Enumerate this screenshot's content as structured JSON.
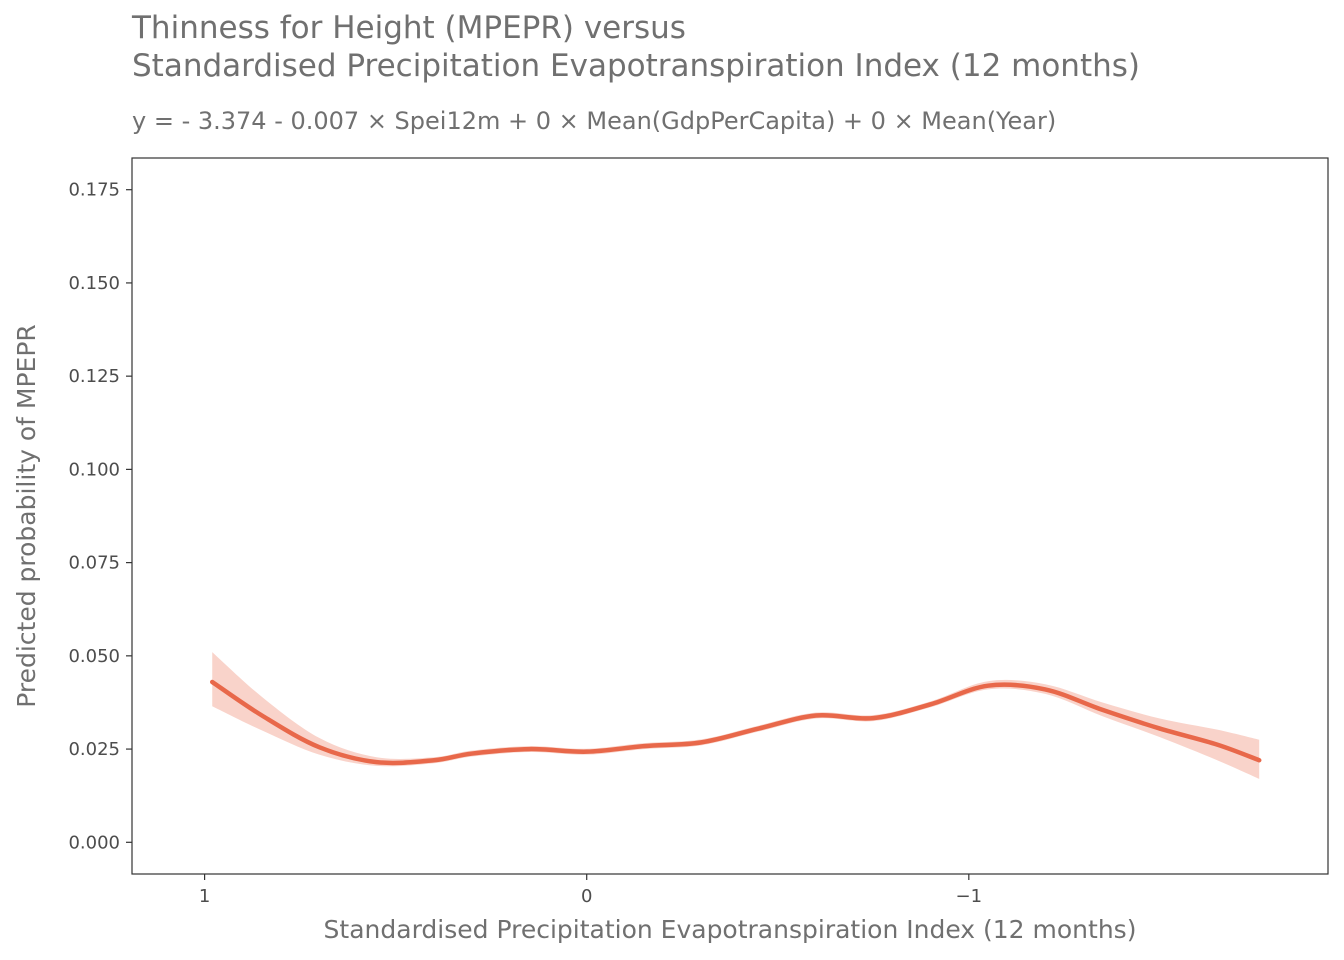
{
  "chart_data": {
    "type": "line",
    "title_line1": "Thinness for Height (MPEPR) versus",
    "title_line2": "Standardised Precipitation Evapotranspiration Index (12 months)",
    "subtitle": "y =  - 3.374 - 0.007 × Spei12m + 0 × Mean(GdpPerCapita) + 0 × Mean(Year)",
    "xlabel": "Standardised Precipitation Evapotranspiration Index (12 months)",
    "ylabel": "Predicted probability of MPEPR",
    "x_reversed": true,
    "xlim": [
      1.19,
      -1.94
    ],
    "ylim": [
      -0.0085,
      0.1835
    ],
    "x_ticks": [
      {
        "value": 1,
        "label": "1"
      },
      {
        "value": 0,
        "label": "0"
      },
      {
        "value": -1,
        "label": "−1"
      }
    ],
    "y_ticks": [
      {
        "value": 0.0,
        "label": "0.000"
      },
      {
        "value": 0.025,
        "label": "0.025"
      },
      {
        "value": 0.05,
        "label": "0.050"
      },
      {
        "value": 0.075,
        "label": "0.075"
      },
      {
        "value": 0.1,
        "label": "0.100"
      },
      {
        "value": 0.125,
        "label": "0.125"
      },
      {
        "value": 0.15,
        "label": "0.150"
      },
      {
        "value": 0.175,
        "label": "0.175"
      }
    ],
    "grid": false,
    "line_color": "#e8684a",
    "band_color": "#f9d3ca",
    "series": [
      {
        "x": [
          0.98,
          0.85,
          0.7,
          0.55,
          0.4,
          0.3,
          0.15,
          0.0,
          -0.15,
          -0.3,
          -0.45,
          -0.6,
          -0.75,
          -0.9,
          -1.05,
          -1.2,
          -1.35,
          -1.5,
          -1.65,
          -1.76
        ],
        "y": [
          0.043,
          0.034,
          0.0255,
          0.0215,
          0.022,
          0.0238,
          0.025,
          0.0243,
          0.0258,
          0.0268,
          0.0305,
          0.034,
          0.0333,
          0.037,
          0.042,
          0.041,
          0.0355,
          0.0305,
          0.0262,
          0.022
        ],
        "lower": [
          0.0365,
          0.03,
          0.0235,
          0.0205,
          0.0212,
          0.023,
          0.0242,
          0.0235,
          0.025,
          0.026,
          0.0297,
          0.0332,
          0.0325,
          0.0362,
          0.041,
          0.0398,
          0.0338,
          0.0282,
          0.022,
          0.017
        ],
        "upper": [
          0.051,
          0.039,
          0.028,
          0.0228,
          0.0228,
          0.0246,
          0.0258,
          0.0251,
          0.0266,
          0.0276,
          0.0313,
          0.0348,
          0.0341,
          0.0378,
          0.0432,
          0.0424,
          0.0375,
          0.0332,
          0.0302,
          0.0275
        ]
      }
    ]
  }
}
